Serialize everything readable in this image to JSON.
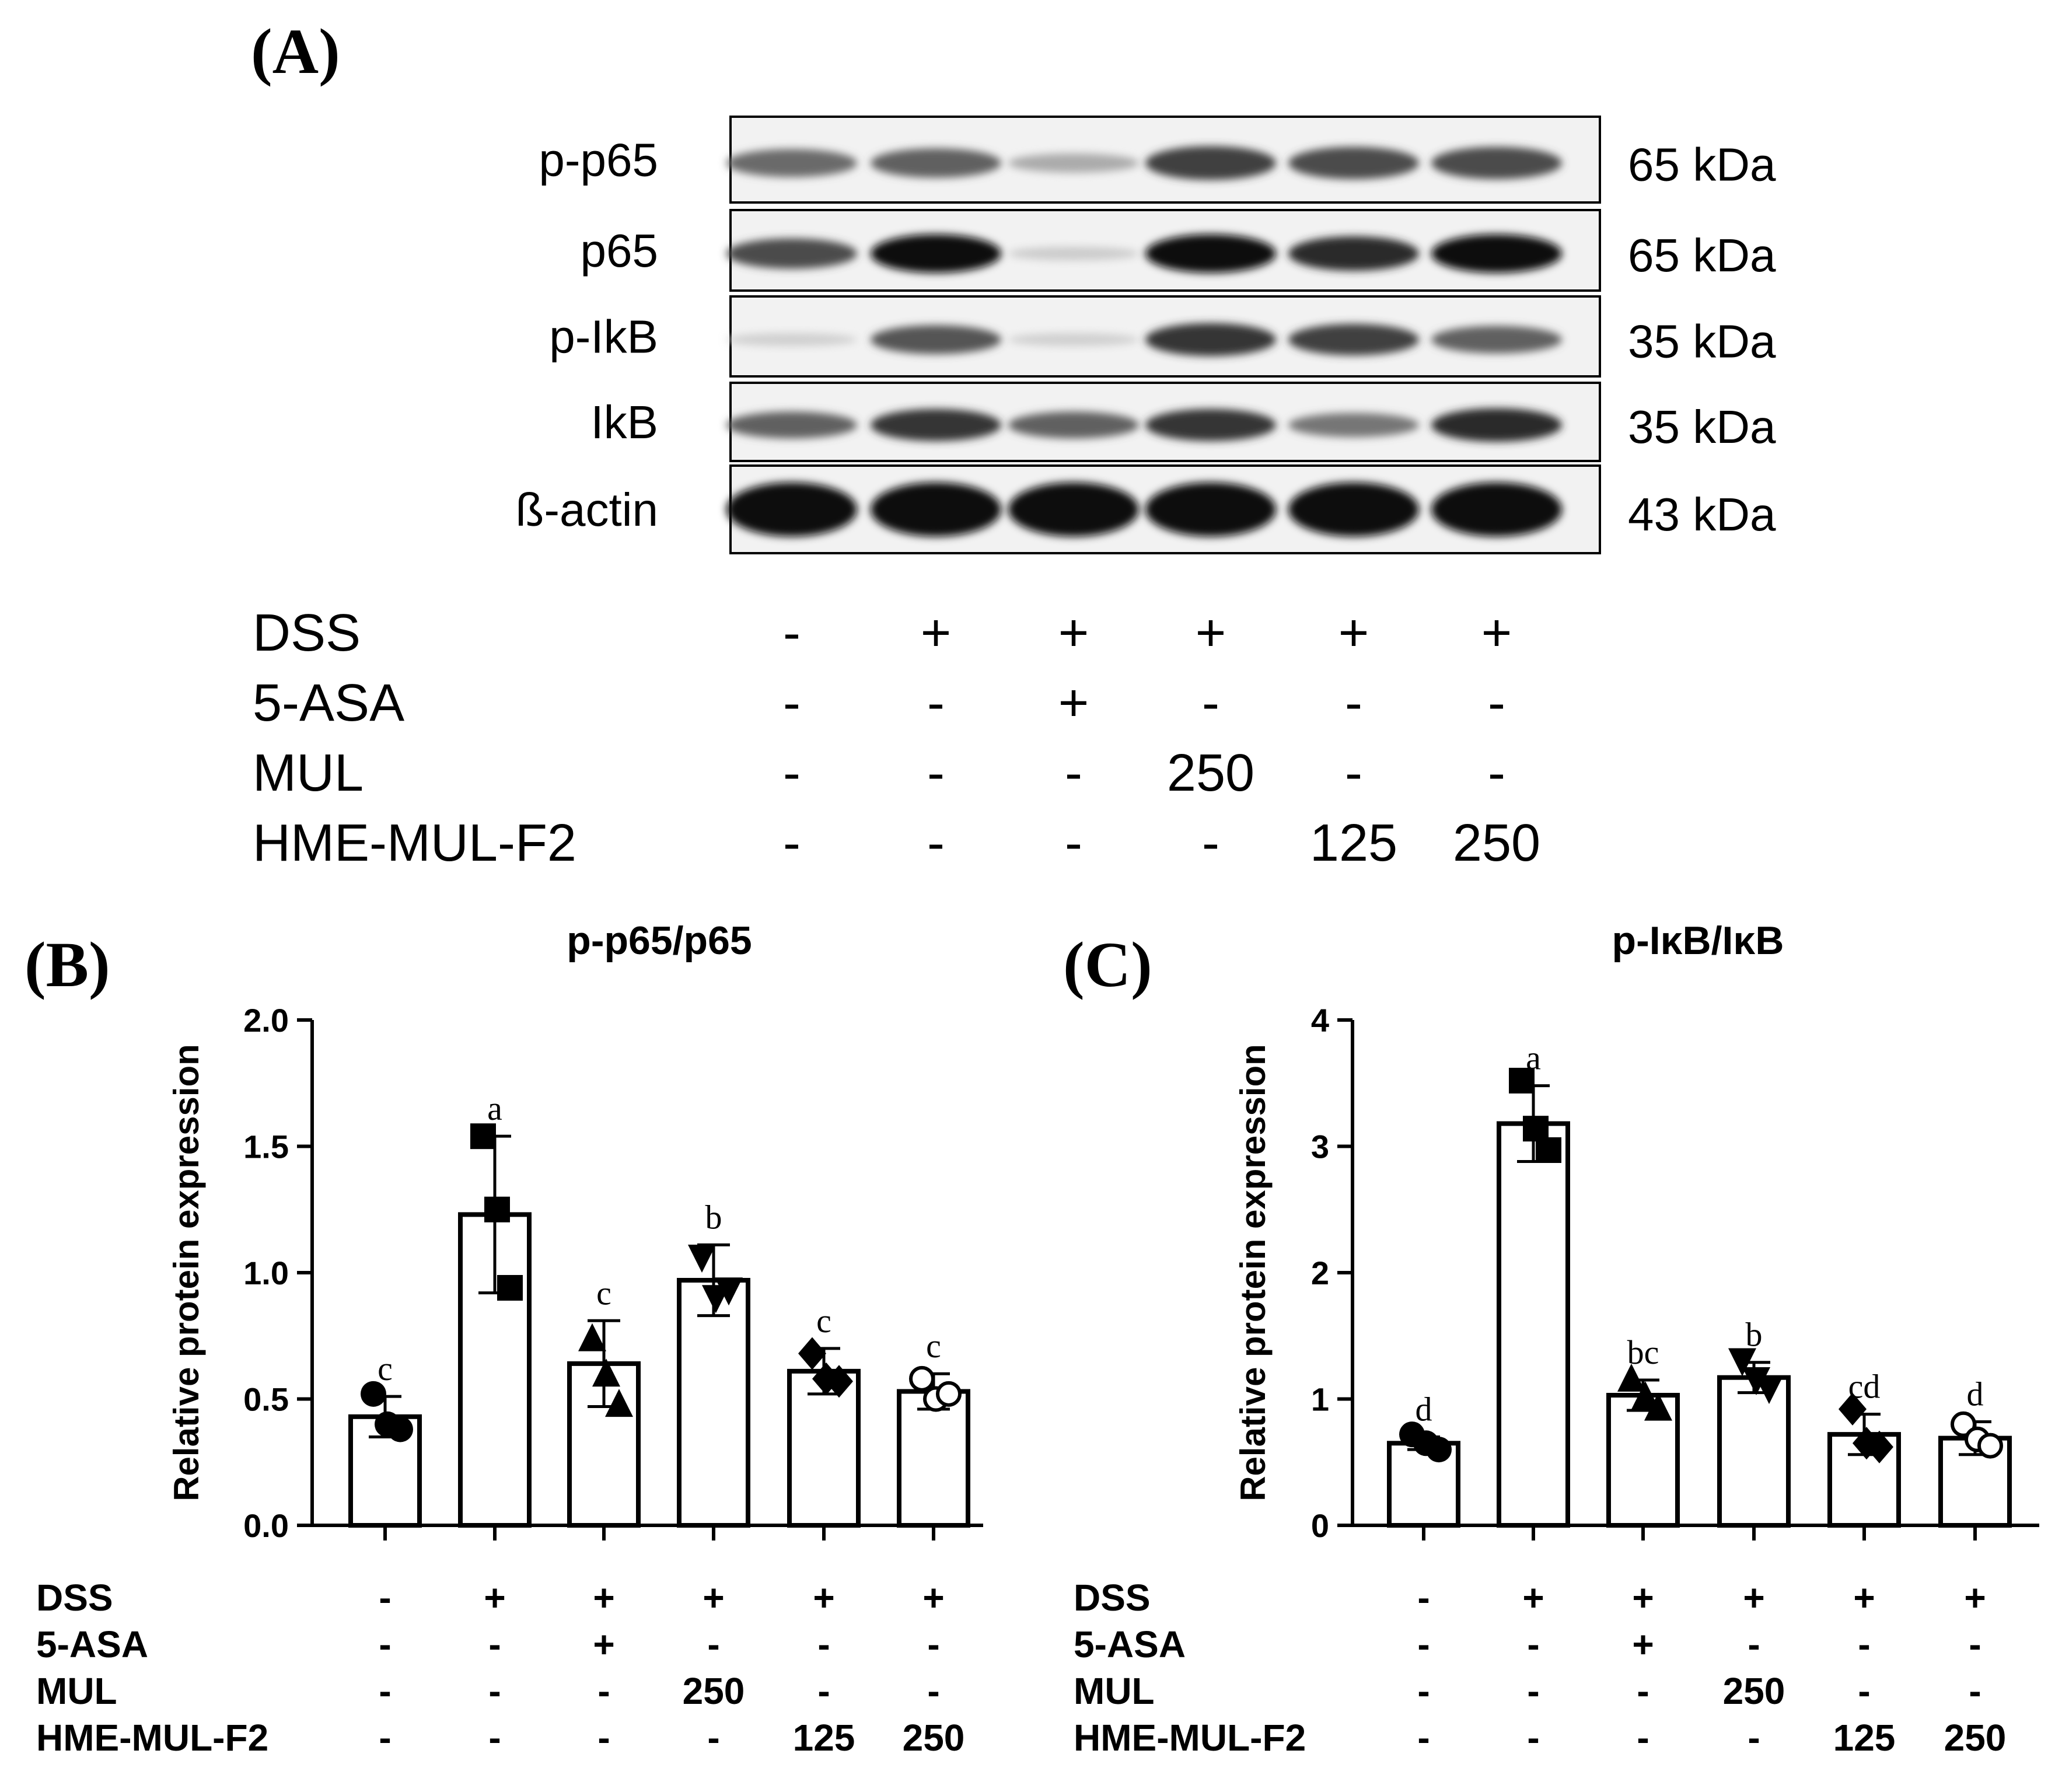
{
  "panel_a": {
    "letter": "(A)",
    "blots": [
      {
        "label": "p-p65",
        "kda": "65 kDa",
        "bands": [
          0.55,
          0.6,
          0.25,
          0.75,
          0.7,
          0.7
        ]
      },
      {
        "label": "p65",
        "kda": "65 kDa",
        "bands": [
          0.7,
          1.0,
          0.1,
          1.0,
          0.85,
          1.0
        ]
      },
      {
        "label": "p-IkB",
        "kda": "35 kDa",
        "bands": [
          0.08,
          0.65,
          0.08,
          0.8,
          0.75,
          0.6
        ]
      },
      {
        "label": "IkB",
        "kda": "35 kDa",
        "bands": [
          0.6,
          0.8,
          0.6,
          0.8,
          0.5,
          0.85
        ]
      },
      {
        "label": "ß-actin",
        "kda": "43 kDa",
        "bands": [
          1.0,
          1.0,
          1.0,
          1.0,
          1.0,
          1.0
        ]
      }
    ],
    "treatments": [
      {
        "name": "DSS",
        "values": [
          "-",
          "+",
          "+",
          "+",
          "+",
          "+"
        ]
      },
      {
        "name": "5-ASA",
        "values": [
          "-",
          "-",
          "+",
          "-",
          "-",
          "-"
        ]
      },
      {
        "name": "MUL",
        "values": [
          "-",
          "-",
          "-",
          "250",
          "-",
          "-"
        ]
      },
      {
        "name": "HME-MUL-F2",
        "values": [
          "-",
          "-",
          "-",
          "-",
          "125",
          "250"
        ]
      }
    ]
  },
  "chart_data": [
    {
      "type": "bar",
      "panel": "(B)",
      "title": "p-p65/p65",
      "ylabel": "Relative protein expression",
      "ylim": [
        0,
        2.0
      ],
      "yticks": [
        "0.0",
        "0.5",
        "1.0",
        "1.5",
        "2.0"
      ],
      "values": [
        0.43,
        1.23,
        0.64,
        0.97,
        0.61,
        0.53
      ],
      "errors": [
        0.08,
        0.31,
        0.17,
        0.14,
        0.09,
        0.07
      ],
      "points": [
        [
          0.52,
          0.4,
          0.38
        ],
        [
          1.54,
          1.25,
          0.94
        ],
        [
          0.74,
          0.6,
          0.48
        ],
        [
          1.06,
          0.9,
          0.93
        ],
        [
          0.68,
          0.58,
          0.57
        ],
        [
          0.58,
          0.5,
          0.52
        ]
      ],
      "markers": [
        "circle",
        "square",
        "triangle",
        "triangle-down",
        "diamond",
        "open-circle"
      ],
      "letters": [
        "c",
        "a",
        "c",
        "b",
        "c",
        "c"
      ],
      "treatments": [
        {
          "name": "DSS",
          "values": [
            "-",
            "+",
            "+",
            "+",
            "+",
            "+"
          ]
        },
        {
          "name": "5-ASA",
          "values": [
            "-",
            "-",
            "+",
            "-",
            "-",
            "-"
          ]
        },
        {
          "name": "MUL",
          "values": [
            "-",
            "-",
            "-",
            "250",
            "-",
            "-"
          ]
        },
        {
          "name": "HME-MUL-F2",
          "values": [
            "-",
            "-",
            "-",
            "-",
            "125",
            "250"
          ]
        }
      ]
    },
    {
      "type": "bar",
      "panel": "(C)",
      "title": "p-IκB/IκB",
      "ylabel": "Relative protein expression",
      "ylim": [
        0,
        4
      ],
      "yticks": [
        "0",
        "1",
        "2",
        "3",
        "4"
      ],
      "values": [
        0.65,
        3.18,
        1.03,
        1.17,
        0.72,
        0.69
      ],
      "errors": [
        0.05,
        0.3,
        0.12,
        0.12,
        0.16,
        0.13
      ],
      "points": [
        [
          0.72,
          0.65,
          0.6
        ],
        [
          3.52,
          3.14,
          2.97
        ],
        [
          1.16,
          1.02,
          0.93
        ],
        [
          1.3,
          1.15,
          1.08
        ],
        [
          0.92,
          0.65,
          0.62
        ],
        [
          0.8,
          0.68,
          0.63
        ]
      ],
      "markers": [
        "circle",
        "square",
        "triangle",
        "triangle-down",
        "diamond",
        "open-circle"
      ],
      "letters": [
        "d",
        "a",
        "bc",
        "b",
        "cd",
        "d"
      ],
      "treatments": [
        {
          "name": "DSS",
          "values": [
            "-",
            "+",
            "+",
            "+",
            "+",
            "+"
          ]
        },
        {
          "name": "5-ASA",
          "values": [
            "-",
            "-",
            "+",
            "-",
            "-",
            "-"
          ]
        },
        {
          "name": "MUL",
          "values": [
            "-",
            "-",
            "-",
            "250",
            "-",
            "-"
          ]
        },
        {
          "name": "HME-MUL-F2",
          "values": [
            "-",
            "-",
            "-",
            "-",
            "125",
            "250"
          ]
        }
      ]
    }
  ]
}
